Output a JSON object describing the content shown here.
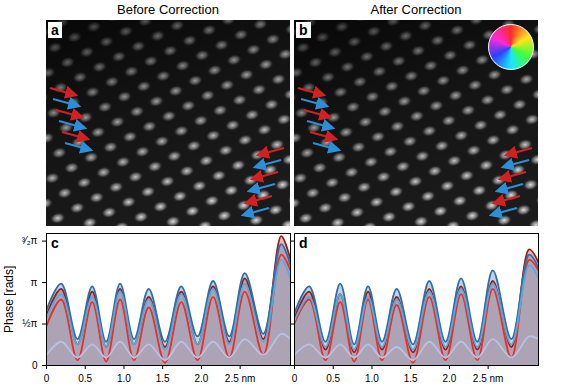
{
  "images": [
    {
      "letter": "a",
      "title": "Before Correction"
    },
    {
      "letter": "b",
      "title": "After Correction"
    }
  ],
  "chart_data": [
    {
      "type": "line",
      "title": "c",
      "y_label": "Phase [rads]",
      "x": [
        0,
        0.19,
        0.4,
        0.59,
        0.77,
        0.95,
        1.13,
        1.32,
        1.53,
        1.74,
        1.95,
        2.15,
        2.36,
        2.56,
        2.8,
        3.03,
        3.15
      ],
      "xlim": [
        0,
        3.15
      ],
      "xticks": [
        0,
        0.5,
        {
          "value": 1,
          "label": "1.0"
        },
        1.5,
        {
          "value": 2,
          "label": "2.0"
        },
        {
          "value": 2.5,
          "label": "2.5 nm"
        }
      ],
      "ylim": [
        0,
        5
      ],
      "yticks": [
        0,
        {
          "value": 1.5708,
          "label": "½π"
        },
        {
          "value": 3.1416,
          "label": "π"
        },
        {
          "value": 4.7124,
          "label": "³⁄₂π"
        }
      ],
      "series": [
        {
          "type": "area",
          "color": "#9e1b1b",
          "values": [
            1.9,
            2.9,
            0.8,
            2.8,
            0.7,
            2.9,
            0.8,
            2.6,
            0.7,
            2.8,
            0.8,
            3.0,
            0.9,
            3.3,
            1.0,
            4.9,
            4.0
          ]
        },
        {
          "type": "line",
          "color": "#e8302a",
          "values": [
            1.5,
            2.5,
            0.2,
            2.4,
            0.15,
            2.5,
            0.2,
            2.2,
            0.1,
            2.4,
            0.2,
            2.6,
            0.3,
            2.8,
            0.4,
            4.2,
            3.6
          ]
        },
        {
          "type": "area",
          "color": "#2f6fa8",
          "values": [
            2.1,
            3.1,
            1.0,
            3.0,
            0.9,
            3.1,
            1.0,
            2.9,
            0.9,
            3.0,
            1.1,
            3.2,
            1.1,
            3.5,
            1.2,
            4.6,
            3.8
          ]
        },
        {
          "type": "line",
          "color": "#5aa9dd",
          "values": [
            1.8,
            2.7,
            0.8,
            2.6,
            0.7,
            2.8,
            0.8,
            2.5,
            0.6,
            2.7,
            0.8,
            2.9,
            0.8,
            3.1,
            0.9,
            4.0,
            3.3
          ]
        },
        {
          "type": "line",
          "color": "#b7c0e6",
          "values": [
            0.4,
            0.9,
            0.3,
            0.8,
            0.3,
            0.9,
            0.3,
            0.8,
            0.2,
            0.9,
            0.3,
            0.9,
            0.3,
            1.0,
            0.4,
            1.2,
            1.0
          ]
        }
      ]
    },
    {
      "type": "line",
      "title": "d",
      "tick_labels": "x",
      "x": [
        0,
        0.19,
        0.4,
        0.59,
        0.77,
        0.95,
        1.13,
        1.32,
        1.53,
        1.74,
        1.95,
        2.15,
        2.36,
        2.56,
        2.8,
        3.03,
        3.15
      ],
      "xlim": [
        0,
        3.15
      ],
      "xticks": [
        0,
        0.5,
        {
          "value": 1,
          "label": "1.0"
        },
        1.5,
        {
          "value": 2,
          "label": "2.0"
        },
        {
          "value": 2.5,
          "label": "2.5 nm"
        }
      ],
      "ylim": [
        0,
        5
      ],
      "yticks": [
        0,
        {
          "value": 1.5708,
          "label": "½π"
        },
        {
          "value": 3.1416,
          "label": "π"
        },
        {
          "value": 4.7124,
          "label": "³⁄₂π"
        }
      ],
      "series": [
        {
          "type": "area",
          "color": "#9e1b1b",
          "values": [
            1.8,
            2.8,
            0.6,
            2.7,
            0.5,
            2.8,
            0.6,
            2.6,
            0.5,
            2.9,
            0.6,
            3.0,
            0.6,
            3.2,
            0.7,
            4.4,
            3.9
          ]
        },
        {
          "type": "line",
          "color": "#e8302a",
          "values": [
            1.6,
            2.5,
            0.2,
            2.4,
            0.15,
            2.5,
            0.2,
            2.3,
            0.1,
            2.6,
            0.2,
            2.7,
            0.2,
            2.9,
            0.3,
            4.0,
            3.6
          ]
        },
        {
          "type": "area",
          "color": "#2f6fa8",
          "values": [
            2.0,
            3.0,
            0.9,
            3.1,
            0.8,
            3.0,
            0.9,
            2.9,
            0.8,
            3.2,
            0.9,
            3.3,
            0.9,
            3.6,
            1.0,
            4.2,
            3.7
          ]
        },
        {
          "type": "line",
          "color": "#5aa9dd",
          "values": [
            1.7,
            2.6,
            0.7,
            2.7,
            0.6,
            2.6,
            0.7,
            2.5,
            0.6,
            2.8,
            0.7,
            2.9,
            0.7,
            3.1,
            0.8,
            3.8,
            3.3
          ]
        },
        {
          "type": "line",
          "color": "#b7c0e6",
          "values": [
            0.4,
            0.8,
            0.3,
            0.8,
            0.3,
            0.8,
            0.3,
            0.7,
            0.2,
            0.9,
            0.3,
            0.9,
            0.3,
            1.0,
            0.3,
            1.1,
            1.0
          ]
        }
      ]
    }
  ]
}
